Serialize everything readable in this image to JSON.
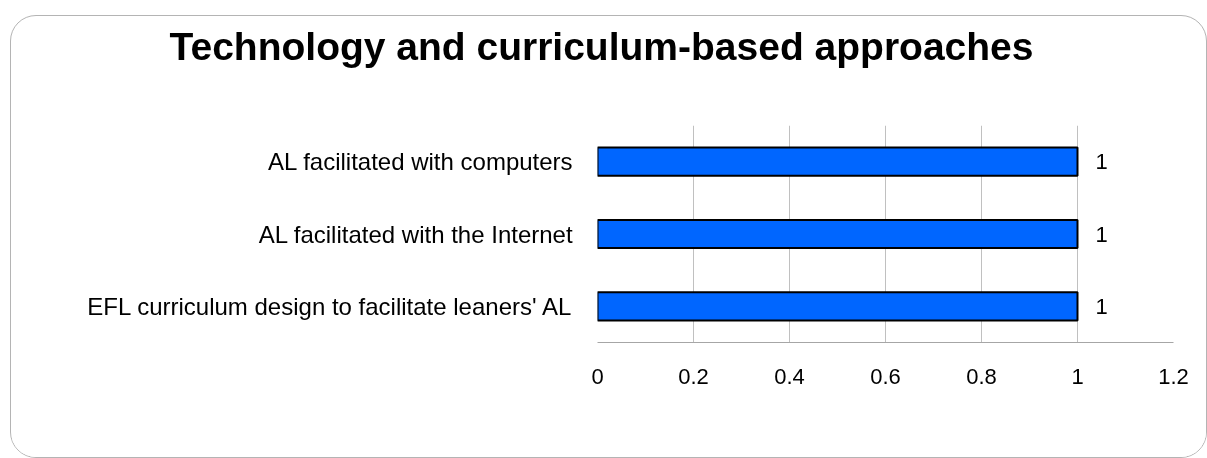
{
  "chart_data": {
    "type": "bar",
    "orientation": "horizontal",
    "title": "Technology and curriculum-based approaches",
    "categories": [
      "AL facilitated with computers",
      "AL facilitated with the Internet",
      "EFL curriculum design to facilitate leaners' AL"
    ],
    "values": [
      1,
      1,
      1
    ],
    "color": "#0066ff",
    "xlim": [
      0,
      1.2
    ],
    "xticks": [
      0,
      0.2,
      0.4,
      0.6,
      0.8,
      1,
      1.2
    ],
    "grid": "x",
    "data_labels": true
  }
}
